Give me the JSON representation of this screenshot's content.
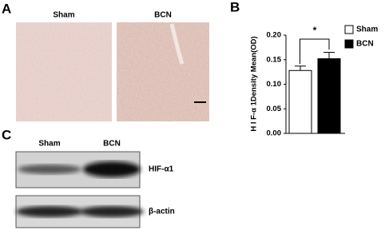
{
  "panels": {
    "A": {
      "label": "A",
      "columns": [
        "Sham",
        "BCN"
      ]
    },
    "B": {
      "label": "B"
    },
    "C": {
      "label": "C",
      "columns": [
        "Sham",
        "BCN"
      ],
      "rows": [
        "HIF-α1",
        "β-actin"
      ]
    }
  },
  "chart_data": {
    "type": "bar",
    "y_label": "H I F-α 1Density Mean(OD)",
    "annotation": "*",
    "series": [
      {
        "name": "Sham",
        "color": "#ffffff",
        "values": [
          0.128
        ],
        "errors": [
          0.009
        ]
      },
      {
        "name": "BCN",
        "color": "#000000",
        "values": [
          0.152
        ],
        "errors": [
          0.013
        ]
      }
    ],
    "ylim": [
      0,
      0.2
    ],
    "yticks": [
      {
        "value": 0,
        "label": "0.00"
      },
      {
        "value": 0.05,
        "label": "0.05"
      },
      {
        "value": 0.1,
        "label": "0.10"
      },
      {
        "value": 0.15,
        "label": "0.15"
      },
      {
        "value": 0.2,
        "label": "0.20"
      }
    ],
    "legend": "top-right"
  }
}
